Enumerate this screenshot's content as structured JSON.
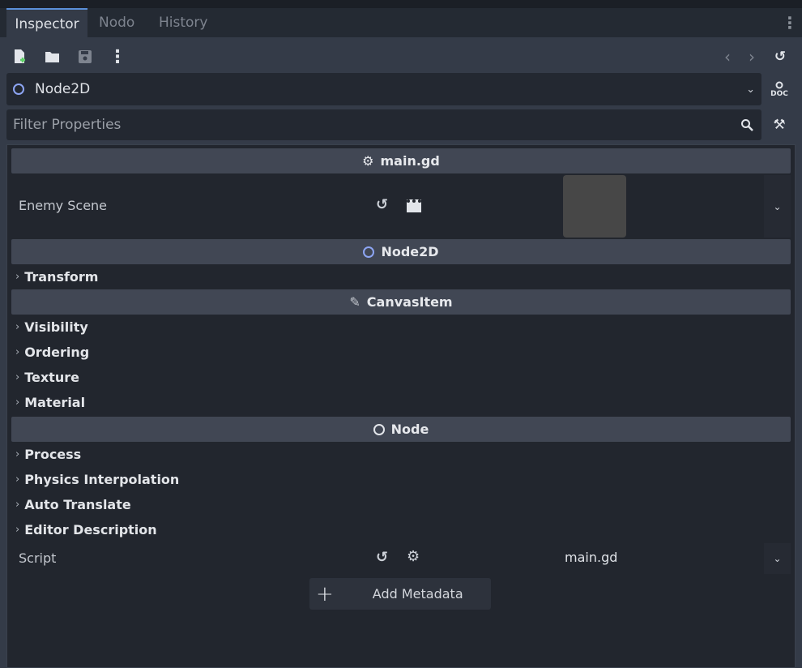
{
  "tabs": [
    {
      "label": "Inspector",
      "active": true
    },
    {
      "label": "Nodo"
    },
    {
      "label": "History"
    }
  ],
  "toolbar": {
    "icons": [
      "new-resource-icon",
      "open-folder-icon",
      "save-icon",
      "more-vertical-icon",
      "back-arrow-icon",
      "forward-arrow-icon",
      "history-icon"
    ]
  },
  "node_selector": {
    "value": "Node2D",
    "icon_color": "#8da5f3"
  },
  "filter": {
    "placeholder": "Filter Properties"
  },
  "sections": {
    "script": {
      "title": "main.gd",
      "property": {
        "label": "Enemy Scene"
      }
    },
    "node2d": {
      "title": "Node2D",
      "groups": [
        "Transform"
      ]
    },
    "canvasitem": {
      "title": "CanvasItem",
      "groups": [
        "Visibility",
        "Ordering",
        "Texture",
        "Material"
      ]
    },
    "node": {
      "title": "Node",
      "groups": [
        "Process",
        "Physics Interpolation",
        "Auto Translate",
        "Editor Description"
      ]
    }
  },
  "script_row": {
    "label": "Script",
    "value": "main.gd"
  },
  "add_metadata": {
    "label": "Add Metadata"
  },
  "colors": {
    "accent": "#5a8fd8",
    "node2d": "#8da5f3",
    "new_icon_plus": "#5fd068"
  }
}
